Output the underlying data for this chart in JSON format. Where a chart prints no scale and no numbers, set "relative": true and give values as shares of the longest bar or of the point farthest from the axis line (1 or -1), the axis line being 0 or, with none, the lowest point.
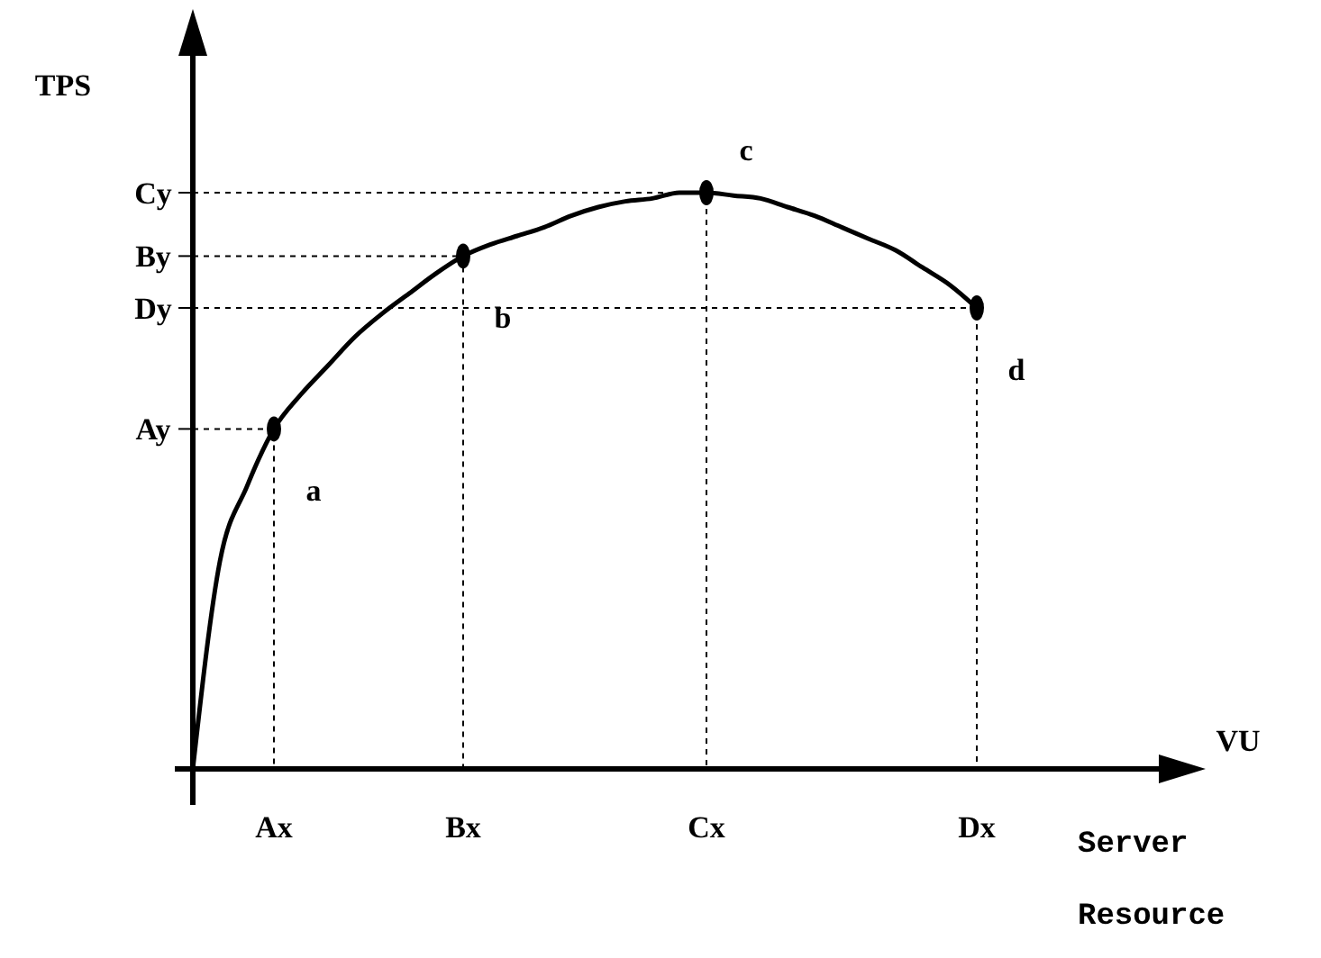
{
  "chart_data": {
    "type": "line",
    "relative": true,
    "xlabel": "VU",
    "ylabel": "TPS",
    "categories": [
      null,
      null,
      null,
      "Ax",
      null,
      null,
      null,
      null,
      null,
      null,
      "Bx",
      null,
      null,
      null,
      null,
      null,
      null,
      null,
      null,
      "Cx",
      null,
      null,
      null,
      null,
      null,
      null,
      null,
      null,
      null,
      "Dx",
      null,
      null,
      null,
      null,
      null,
      null,
      null
    ],
    "annotations": [
      "Server Resource",
      "Ay",
      "By",
      "Cy",
      "Dy",
      {
        "text": "a",
        "x": "Ax",
        "y": 0.59
      },
      {
        "text": "b",
        "x": "Bx",
        "y": 0.89
      },
      {
        "text": "c",
        "x": "Cx",
        "y": 1
      },
      {
        "text": "d",
        "x": "Dx",
        "y": 0.8
      }
    ],
    "series": [
      {
        "color": "#000000",
        "values": [
          0,
          0.36,
          0.49,
          0.59,
          0.65,
          0.7,
          0.75,
          0.79,
          0.825,
          0.86,
          0.89,
          0.91,
          0.925,
          0.94,
          0.96,
          0.975,
          0.985,
          0.99,
          1,
          1,
          0.995,
          0.99,
          0.975,
          0.96,
          0.94,
          0.92,
          0.9,
          0.87,
          0.84,
          0.8,
          null,
          null,
          null,
          null,
          null,
          null,
          null
        ]
      },
      {
        "type": "scatter",
        "color": "#000000",
        "values": [
          null,
          null,
          null,
          0.59,
          null,
          null,
          null,
          null,
          null,
          null,
          0.89,
          null,
          null,
          null,
          null,
          null,
          null,
          null,
          null,
          1,
          null,
          null,
          null,
          null,
          null,
          null,
          null,
          null,
          null,
          0.8,
          null,
          null,
          null,
          null,
          null,
          null,
          null
        ]
      }
    ]
  }
}
